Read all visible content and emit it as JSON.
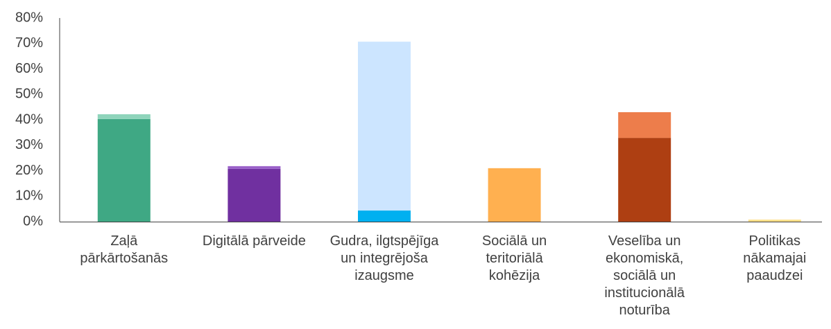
{
  "chart_data": {
    "type": "stacked_bar",
    "categories": [
      "Zaļā pārkārtošanās",
      "Digitālā pārveide",
      "Gudra, ilgtspējīga un integrējoša izaugsme",
      "Sociālā un teritoriālā kohēzija",
      "Veselība un ekonomiskā, sociālā un institucionālā noturība",
      "Politikas nākamajai paaudzei"
    ],
    "series": [
      {
        "values": [
          40.3,
          20.7,
          4.4,
          21.0,
          32.9,
          0.8
        ],
        "colors": [
          "#3fa884",
          "#7030a0",
          "#00b0f0",
          "#ffb050",
          "#ae3f12",
          "#ffe08a"
        ]
      },
      {
        "values": [
          1.9,
          1.1,
          66.3,
          0,
          10.1,
          0
        ],
        "colors": [
          "#8fd4bb",
          "#9b62c9",
          "#cce5ff",
          "#ffb050",
          "#ed7d4b",
          "#ffe08a"
        ]
      }
    ],
    "ylim": [
      0,
      80
    ],
    "yticks": [
      {
        "value": 0,
        "label": "0%"
      },
      {
        "value": 10,
        "label": "10%"
      },
      {
        "value": 20,
        "label": "20%"
      },
      {
        "value": 30,
        "label": "30%"
      },
      {
        "value": 40,
        "label": "40%"
      },
      {
        "value": 50,
        "label": "50%"
      },
      {
        "value": 60,
        "label": "60%"
      },
      {
        "value": 70,
        "label": "70%"
      },
      {
        "value": 80,
        "label": "80%"
      }
    ],
    "grid": false
  }
}
